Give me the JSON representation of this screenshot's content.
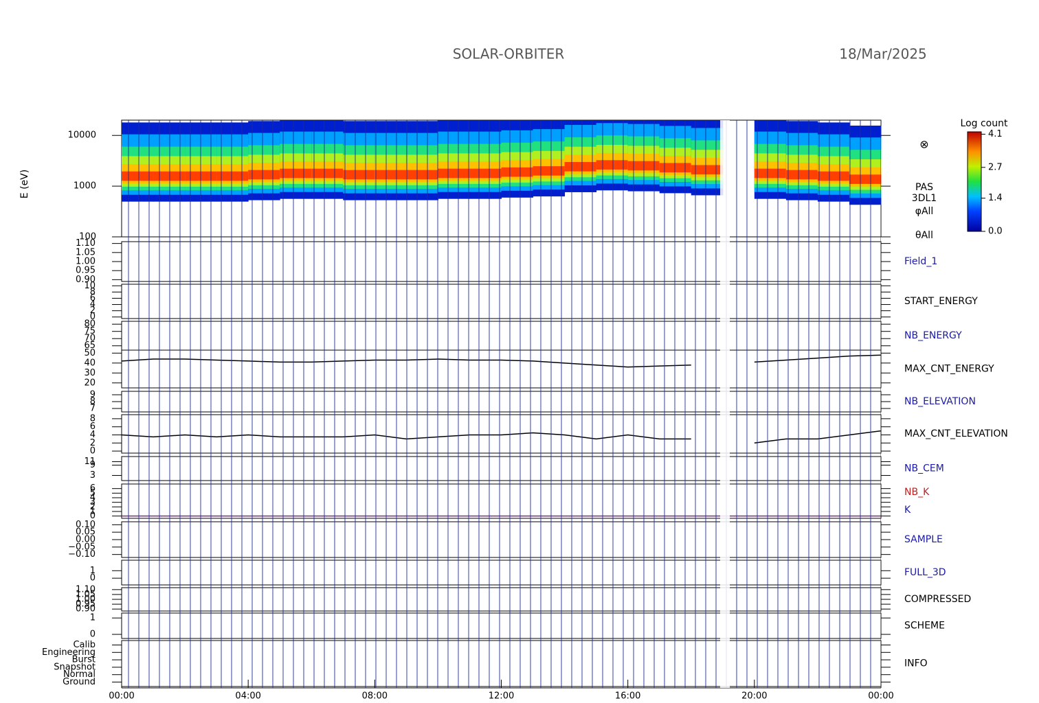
{
  "header": {
    "title": "SOLAR-ORBITER",
    "date": "18/Mar/2025"
  },
  "time": {
    "xlim": [
      0,
      24
    ],
    "xticks": [
      {
        "value": 0,
        "label": "00:00"
      },
      {
        "value": 4,
        "label": "04:00"
      },
      {
        "value": 8,
        "label": "08:00"
      },
      {
        "value": 12,
        "label": "12:00"
      },
      {
        "value": 16,
        "label": "16:00"
      },
      {
        "value": 20,
        "label": "20:00"
      },
      {
        "value": 24,
        "label": "00:00"
      }
    ]
  },
  "spectrogram": {
    "ylabel": "E (eV)",
    "log": true,
    "ylim": [
      100,
      20000
    ],
    "yticks": [
      10000,
      1000,
      100
    ],
    "labels": [
      "PAS",
      "3DL1",
      "φAll",
      "θAll"
    ],
    "peak_energy": {
      "x": [
        0,
        1,
        2,
        3,
        4,
        5,
        6,
        7,
        8,
        9,
        10,
        11,
        12,
        13,
        14,
        15,
        16,
        17,
        18,
        19,
        20,
        21,
        22,
        23,
        24
      ],
      "values": [
        1500,
        1500,
        1500,
        1500,
        1600,
        1700,
        1700,
        1600,
        1600,
        1600,
        1700,
        1700,
        1800,
        1900,
        2300,
        2500,
        2400,
        2200,
        2000,
        null,
        1700,
        1600,
        1500,
        1300,
        1300
      ]
    },
    "colorbar": {
      "label": "Log count",
      "lim": [
        0,
        4.2
      ],
      "ticks": [
        4.1,
        2.7,
        1.4,
        {
          "value": 0,
          "label": "0.0"
        }
      ]
    }
  },
  "panels": [
    {
      "labels": [
        {
          "text": "Field_1",
          "color": "#1a1aa6"
        }
      ],
      "ylim": [
        0.89,
        1.11
      ],
      "yticks": [
        {
          "value": 1.1,
          "label": "1.10"
        },
        {
          "value": 1.05,
          "label": "1.05"
        },
        {
          "value": 1,
          "label": "1.00"
        },
        {
          "value": 0.95,
          "label": "0.95"
        },
        {
          "value": 0.9,
          "label": "0.90"
        }
      ]
    },
    {
      "labels": [
        {
          "text": "START_ENERGY",
          "color": "#000000"
        }
      ],
      "ylim": [
        -0.5,
        10.5
      ],
      "yticks": [
        10,
        8,
        6,
        4,
        2,
        0
      ]
    },
    {
      "labels": [
        {
          "text": "NB_ENERGY",
          "color": "#1a1aa6"
        }
      ],
      "ylim": [
        62,
        82
      ],
      "yticks": [
        80,
        75,
        70,
        65
      ]
    },
    {
      "labels": [
        {
          "text": "MAX_CNT_ENERGY",
          "color": "#000000"
        }
      ],
      "ylim": [
        15,
        53
      ],
      "yticks": [
        50,
        40,
        30,
        20
      ],
      "series": {
        "color": "#000000",
        "x": [
          0,
          1,
          2,
          3,
          4,
          5,
          6,
          7,
          8,
          9,
          10,
          11,
          12,
          13,
          14,
          15,
          16,
          17,
          18,
          19,
          20,
          21,
          22,
          23,
          24
        ],
        "values": [
          42,
          44,
          44,
          43,
          42,
          41,
          41,
          42,
          43,
          43,
          44,
          43,
          43,
          42,
          40,
          38,
          36,
          37,
          38,
          null,
          41,
          43,
          45,
          47,
          48
        ]
      }
    },
    {
      "labels": [
        {
          "text": "NB_ELEVATION",
          "color": "#1a1aa6"
        }
      ],
      "ylim": [
        6.5,
        9.5
      ],
      "yticks": [
        9,
        8,
        7
      ]
    },
    {
      "labels": [
        {
          "text": "MAX_CNT_ELEVATION",
          "color": "#000000"
        }
      ],
      "ylim": [
        -0.5,
        9
      ],
      "yticks": [
        8,
        6,
        4,
        2,
        0
      ],
      "series": {
        "color": "#000000",
        "x": [
          0,
          1,
          2,
          3,
          4,
          5,
          6,
          7,
          8,
          9,
          10,
          11,
          12,
          13,
          14,
          15,
          16,
          17,
          18,
          19,
          20,
          21,
          22,
          23,
          24
        ],
        "values": [
          4,
          3.5,
          4,
          3.5,
          4,
          3.5,
          3.5,
          3.5,
          4,
          3,
          3.5,
          4,
          4,
          4.5,
          4,
          3,
          4,
          3,
          3,
          null,
          2,
          3,
          3,
          4,
          5
        ]
      }
    },
    {
      "labels": [
        {
          "text": "NB_CEM",
          "color": "#1a1aa6"
        }
      ],
      "ylim": [
        0,
        14
      ],
      "yticks": [
        11,
        9,
        3
      ]
    },
    {
      "labels": [
        {
          "text": "NB_K",
          "color": "#c02020"
        },
        {
          "text": "K",
          "color": "#1a1aa6"
        }
      ],
      "ylim": [
        -0.5,
        7
      ],
      "yticks": [
        6,
        5,
        4,
        3,
        2,
        1,
        0
      ],
      "series": {
        "color": "#8a2090",
        "x": [
          0,
          24
        ],
        "values": [
          0,
          0
        ]
      }
    },
    {
      "labels": [
        {
          "text": "SAMPLE",
          "color": "#1a1aa6"
        }
      ],
      "ylim": [
        -0.12,
        0.12
      ],
      "yticks": [
        {
          "value": 0.1,
          "label": "0.10"
        },
        {
          "value": 0.05,
          "label": "0.05"
        },
        {
          "value": 0,
          "label": "0.00"
        },
        {
          "value": -0.05,
          "label": "−0.05"
        },
        {
          "value": -0.1,
          "label": "−0.10"
        }
      ]
    },
    {
      "labels": [
        {
          "text": "FULL_3D",
          "color": "#1a1aa6"
        }
      ],
      "ylim": [
        -0.9,
        2.4
      ],
      "yticks": [
        1,
        0
      ]
    },
    {
      "labels": [
        {
          "text": "COMPRESSED",
          "color": "#000000"
        }
      ],
      "ylim": [
        0.88,
        1.12
      ],
      "yticks": [
        {
          "value": 1.1,
          "label": "1.10"
        },
        {
          "value": 1.05,
          "label": "1.05"
        },
        {
          "value": 1,
          "label": "1.00"
        },
        {
          "value": 0.95,
          "label": "0.95"
        },
        {
          "value": 0.9,
          "label": "0.90"
        }
      ]
    },
    {
      "labels": [
        {
          "text": "SCHEME",
          "color": "#000000"
        }
      ],
      "ylim": [
        -0.25,
        1.3
      ],
      "yticks": [
        1,
        0
      ]
    },
    {
      "labels": [
        {
          "text": "INFO",
          "color": "#000000"
        }
      ],
      "ylim": [
        -0.6,
        5.6
      ],
      "yticks": [
        {
          "value": 5,
          "label": "Calib"
        },
        {
          "value": 4,
          "label": "Engineering"
        },
        {
          "value": 3,
          "label": "Burst"
        },
        {
          "value": 2,
          "label": "Snapshot"
        },
        {
          "value": 1,
          "label": "Normal"
        },
        {
          "value": 0,
          "label": "Ground"
        }
      ]
    }
  ]
}
